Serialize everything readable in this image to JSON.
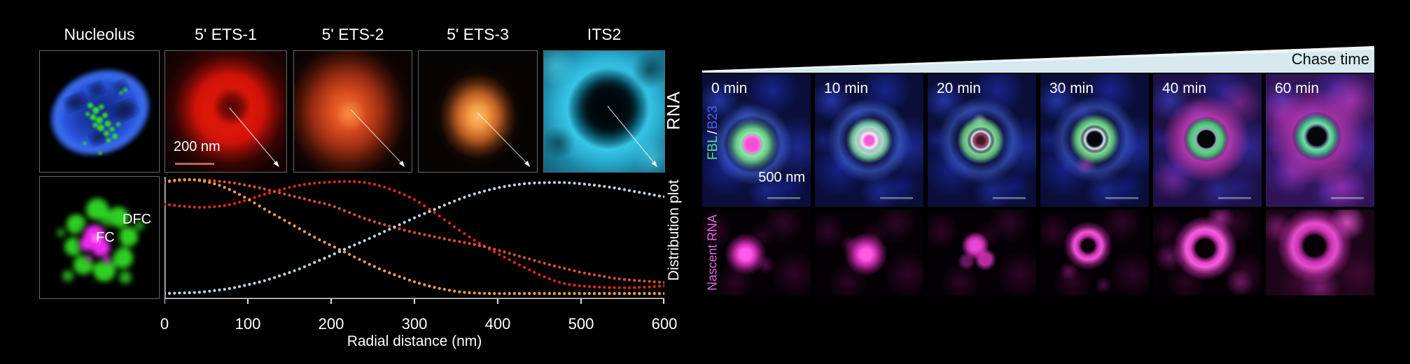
{
  "figure": {
    "background": "#000000",
    "left": {
      "col_labels": [
        "Nucleolus",
        "5' ETS-1",
        "5' ETS-2",
        "5' ETS-3",
        "ITS2"
      ],
      "row_label_rna": "RNA",
      "scale_bar": "200 nm",
      "inset": {
        "dfc": "DFC",
        "fc": "FC"
      }
    },
    "right": {
      "chase_label": "Chase time",
      "times": [
        "0 min",
        "10 min",
        "20 min",
        "30 min",
        "40 min",
        "60 min"
      ],
      "scale_bar": "500 nm",
      "top_row_label": {
        "fbl": "FBL",
        "divider": "/",
        "b23": "B23"
      },
      "bottom_row_label": "Nascent RNA"
    },
    "colors": {
      "ets1_red": "#de2a16",
      "ets2_vermilion": "#d85428",
      "ets3_orange": "#ffa045",
      "its2_pale_blue": "#bdd6e2",
      "fbl_green": "#4fe08c",
      "b23_blue": "#4b63f0",
      "nascent_magenta": "#d96ad8",
      "wedge_fill": "#d7e9ee"
    }
  },
  "chart_data": {
    "type": "scatter",
    "style": "dotted-line",
    "title": "",
    "xlabel": "Radial distance (nm)",
    "ylabel": "Distribution plot",
    "xlim": [
      0,
      600
    ],
    "ylim": [
      0,
      1
    ],
    "xticks": [
      0,
      100,
      200,
      300,
      400,
      500,
      600
    ],
    "grid": false,
    "legend_position": "none",
    "x_nm": [
      0,
      20,
      40,
      60,
      80,
      100,
      120,
      140,
      160,
      180,
      200,
      220,
      240,
      260,
      280,
      300,
      320,
      340,
      360,
      380,
      400,
      420,
      440,
      460,
      480,
      500,
      520,
      540,
      560,
      580,
      600
    ],
    "series": [
      {
        "name": "5' ETS-1",
        "color": "#de2a16",
        "values": [
          0.78,
          0.765,
          0.755,
          0.76,
          0.78,
          0.82,
          0.865,
          0.905,
          0.94,
          0.96,
          0.97,
          0.975,
          0.965,
          0.935,
          0.885,
          0.82,
          0.73,
          0.63,
          0.53,
          0.44,
          0.36,
          0.285,
          0.215,
          0.15,
          0.105,
          0.085,
          0.075,
          0.07,
          0.07,
          0.075,
          0.085
        ]
      },
      {
        "name": "5' ETS-2",
        "color": "#d85428",
        "values": [
          0.97,
          0.985,
          0.99,
          0.98,
          0.965,
          0.94,
          0.91,
          0.875,
          0.84,
          0.805,
          0.77,
          0.715,
          0.66,
          0.615,
          0.575,
          0.54,
          0.51,
          0.48,
          0.455,
          0.425,
          0.39,
          0.35,
          0.31,
          0.27,
          0.235,
          0.2,
          0.175,
          0.15,
          0.135,
          0.125,
          0.115
        ]
      },
      {
        "name": "5' ETS-3",
        "color": "#ffa045",
        "values": [
          0.975,
          0.99,
          0.985,
          0.955,
          0.9,
          0.825,
          0.74,
          0.66,
          0.58,
          0.5,
          0.43,
          0.36,
          0.29,
          0.225,
          0.17,
          0.12,
          0.08,
          0.05,
          0.03,
          0.022,
          0.02,
          0.02,
          0.02,
          0.02,
          0.02,
          0.02,
          0.02,
          0.02,
          0.02,
          0.02,
          0.02
        ]
      },
      {
        "name": "ITS2",
        "color": "#bdd6e2",
        "values": [
          0.02,
          0.025,
          0.03,
          0.045,
          0.065,
          0.095,
          0.13,
          0.175,
          0.225,
          0.285,
          0.345,
          0.41,
          0.47,
          0.535,
          0.6,
          0.665,
          0.725,
          0.785,
          0.84,
          0.885,
          0.92,
          0.945,
          0.96,
          0.965,
          0.965,
          0.955,
          0.94,
          0.92,
          0.895,
          0.87,
          0.845
        ]
      }
    ]
  }
}
